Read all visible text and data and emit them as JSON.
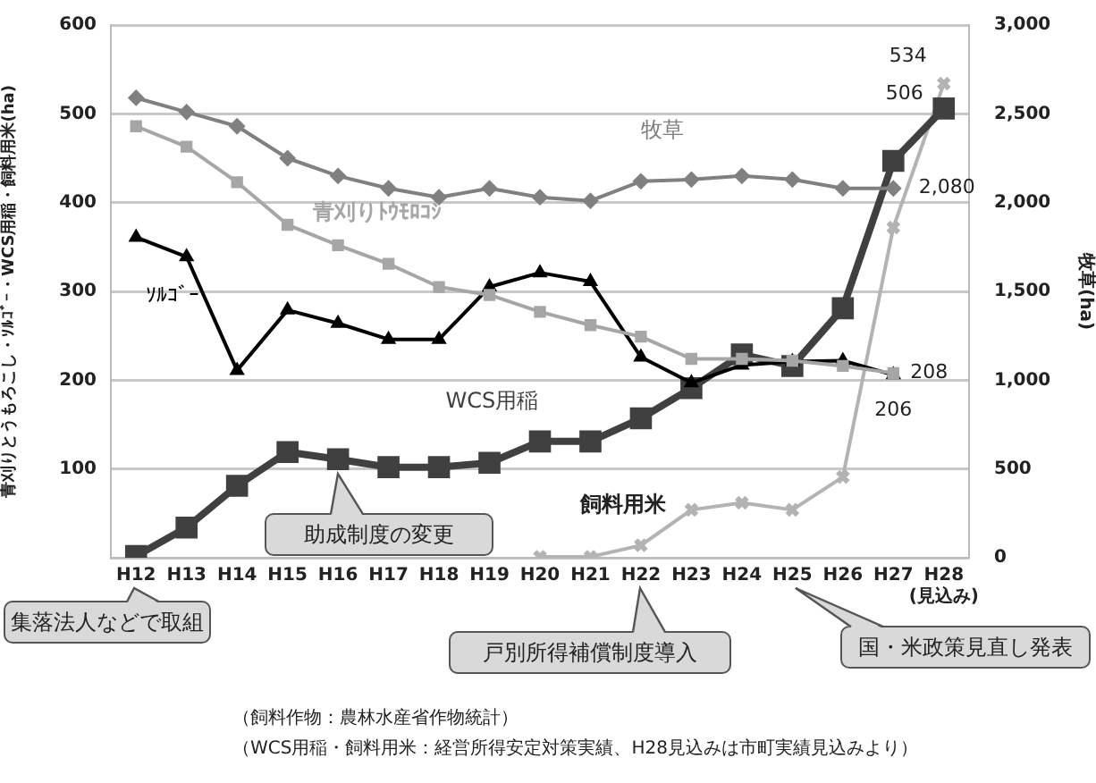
{
  "chart_data": {
    "type": "line",
    "ylabel": "青刈りとうもろこし・ｿﾙｺﾞｰ・WCS用稲・飼料用米(ha)",
    "y2label": "牧草(ha)",
    "categories": [
      "H12",
      "H13",
      "H14",
      "H15",
      "H16",
      "H17",
      "H18",
      "H19",
      "H20",
      "H21",
      "H22",
      "H23",
      "H24",
      "H25",
      "H26",
      "H27",
      "H28(見込み)"
    ],
    "series": [
      {
        "name": "牧草",
        "color": "#808080",
        "marker": "diamond",
        "axis": "y2",
        "values": [
          2590,
          2510,
          2430,
          2250,
          2150,
          2080,
          2030,
          2080,
          2030,
          2010,
          2120,
          2130,
          2150,
          2130,
          2080,
          2080,
          null
        ],
        "value_labels": [
          null,
          null,
          null,
          null,
          null,
          null,
          null,
          null,
          null,
          null,
          null,
          null,
          null,
          null,
          null,
          "2,080",
          null
        ]
      },
      {
        "name": "青刈りﾄｳﾓﾛｺｼ",
        "color": "#a6a6a6",
        "marker": "square",
        "values": [
          486,
          463,
          423,
          375,
          352,
          331,
          305,
          296,
          277,
          262,
          249,
          224,
          224,
          222,
          216,
          208,
          null
        ],
        "value_labels": [
          null,
          null,
          null,
          null,
          null,
          null,
          null,
          null,
          null,
          null,
          null,
          null,
          null,
          null,
          null,
          "208",
          null
        ]
      },
      {
        "name": "ｿﾙｺﾞｰ",
        "color": "#000000",
        "marker": "triangle",
        "values": [
          361,
          339,
          211,
          279,
          264,
          246,
          246,
          305,
          321,
          311,
          226,
          197,
          217,
          221,
          222,
          206,
          null
        ],
        "value_labels": [
          null,
          null,
          null,
          null,
          null,
          null,
          null,
          null,
          null,
          null,
          null,
          null,
          null,
          null,
          null,
          "206",
          null
        ]
      },
      {
        "name": "WCS用稲",
        "color": "#404040",
        "marker": "square",
        "values": [
          2,
          34,
          81,
          119,
          111,
          102,
          102,
          107,
          131,
          131,
          157,
          191,
          229,
          216,
          281,
          447,
          506
        ],
        "value_labels": [
          null,
          null,
          null,
          null,
          null,
          null,
          null,
          null,
          null,
          null,
          null,
          null,
          null,
          null,
          null,
          null,
          "506"
        ]
      },
      {
        "name": "飼料用米",
        "color": "#b3b3b3",
        "marker": "cross",
        "values": [
          null,
          null,
          null,
          null,
          null,
          null,
          null,
          null,
          1,
          1,
          14,
          54,
          62,
          54,
          91,
          372,
          534
        ],
        "value_labels": [
          null,
          null,
          null,
          null,
          null,
          null,
          null,
          null,
          null,
          null,
          null,
          null,
          null,
          null,
          null,
          null,
          "534"
        ]
      }
    ],
    "ylim": [
      0,
      600
    ],
    "yticks": [
      {
        "value": 0,
        "label": null
      },
      100,
      200,
      300,
      400,
      500,
      600
    ],
    "y2lim": [
      0,
      3000
    ],
    "y2ticks": [
      0,
      500,
      {
        "value": 1000,
        "label": "1,000"
      },
      {
        "value": 1500,
        "label": "1,500"
      },
      {
        "value": 2000,
        "label": "2,000"
      },
      {
        "value": 2500,
        "label": "2,500"
      },
      {
        "value": 3000,
        "label": "3,000"
      }
    ],
    "grid": "y",
    "legend": false,
    "annotations": [
      {
        "text": "助成制度の変更",
        "x": "H16",
        "y": 111
      },
      "集落法人などで取組",
      "戸別所得補償制度導入",
      "国・米政策見直し発表",
      "（飼料作物：農林水産省作物統計）",
      "（WCS用稲・飼料用米：経営所得安定対策実績、H28見込みは市町実績見込みより）"
    ]
  }
}
